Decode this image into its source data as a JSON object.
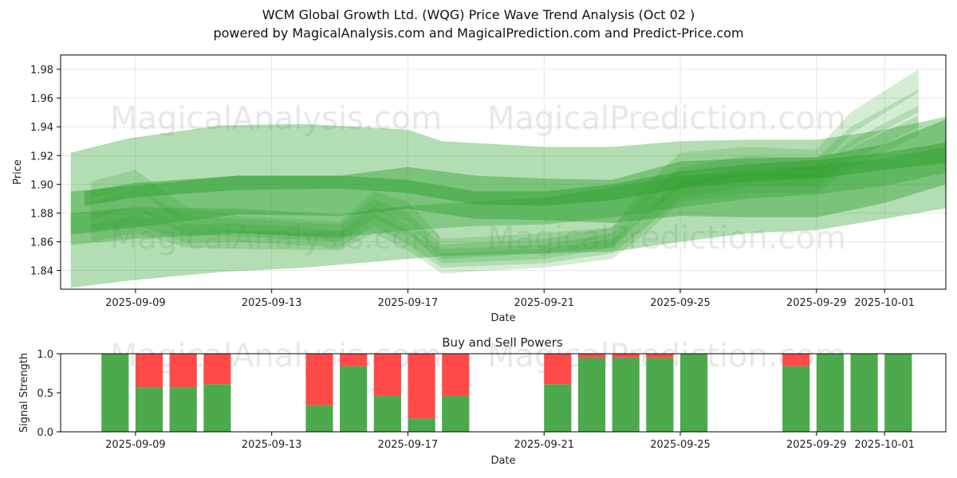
{
  "title_line1": "WCM Global Growth Ltd. (WQG) Price Wave Trend Analysis (Oct 02 )",
  "title_line2": "powered by MagicalAnalysis.com and MagicalPrediction.com and Predict-Price.com",
  "watermarks": [
    "MagicalAnalysis.com",
    "MagicalPrediction.com"
  ],
  "colors": {
    "band": "#2ca02c",
    "buy": "#4caa4c",
    "sell": "#ff4a4a"
  },
  "chart_data": [
    {
      "type": "area",
      "name": "price-wave-chart",
      "xlabel": "Date",
      "ylabel": "Price",
      "ylim": [
        1.827,
        1.99
      ],
      "x_range_days": [
        -2.2,
        23.8
      ],
      "x_origin_date": "2025-09-09",
      "xticks": [
        {
          "day": 0,
          "label": "2025-09-09"
        },
        {
          "day": 4,
          "label": "2025-09-13"
        },
        {
          "day": 8,
          "label": "2025-09-17"
        },
        {
          "day": 12,
          "label": "2025-09-21"
        },
        {
          "day": 16,
          "label": "2025-09-25"
        },
        {
          "day": 20,
          "label": "2025-09-29"
        },
        {
          "day": 22,
          "label": "2025-10-01"
        }
      ],
      "yticks": [
        1.84,
        1.86,
        1.88,
        1.9,
        1.92,
        1.94,
        1.96,
        1.98
      ],
      "grid": true,
      "series": [
        {
          "name": "wide-band",
          "x": [
            -1.9,
            -0.2,
            2.5,
            5,
            8,
            9,
            12,
            14,
            16,
            18,
            20,
            22,
            24.2
          ],
          "upper": [
            1.922,
            1.932,
            1.941,
            1.942,
            1.938,
            1.93,
            1.926,
            1.926,
            1.93,
            1.931,
            1.931,
            1.938,
            1.949
          ],
          "lower": [
            1.828,
            1.833,
            1.839,
            1.842,
            1.848,
            1.85,
            1.852,
            1.853,
            1.86,
            1.866,
            1.868,
            1.876,
            1.885
          ]
        },
        {
          "name": "mid-band-1",
          "x": [
            -1.9,
            0,
            3,
            6,
            8,
            10,
            12,
            14,
            16,
            18,
            20,
            22,
            24.2
          ],
          "upper": [
            1.895,
            1.899,
            1.906,
            1.906,
            1.912,
            1.906,
            1.904,
            1.903,
            1.916,
            1.918,
            1.919,
            1.928,
            1.949
          ],
          "lower": [
            1.865,
            1.87,
            1.879,
            1.878,
            1.883,
            1.876,
            1.875,
            1.873,
            1.878,
            1.877,
            1.877,
            1.887,
            1.903
          ]
        },
        {
          "name": "mid-band-2",
          "x": [
            -1.9,
            0,
            3,
            6,
            8,
            10,
            12,
            14,
            16,
            18,
            20,
            22,
            24.2
          ],
          "upper": [
            1.88,
            1.884,
            1.883,
            1.879,
            1.885,
            1.888,
            1.891,
            1.898,
            1.906,
            1.909,
            1.913,
            1.918,
            1.928
          ],
          "lower": [
            1.858,
            1.862,
            1.866,
            1.863,
            1.868,
            1.871,
            1.872,
            1.877,
            1.884,
            1.89,
            1.893,
            1.899,
            1.91
          ]
        },
        {
          "name": "narrow-band",
          "x": [
            -1.5,
            0,
            3,
            6,
            8,
            10,
            12,
            14,
            16,
            18,
            20,
            22,
            23.8
          ],
          "upper": [
            1.895,
            1.901,
            1.906,
            1.906,
            1.903,
            1.895,
            1.895,
            1.9,
            1.909,
            1.914,
            1.917,
            1.922,
            1.929
          ],
          "lower": [
            1.885,
            1.891,
            1.896,
            1.897,
            1.894,
            1.886,
            1.885,
            1.889,
            1.897,
            1.902,
            1.904,
            1.91,
            1.915
          ]
        },
        {
          "name": "wave-a",
          "x": [
            -1.3,
            0,
            1.5,
            3,
            6,
            7,
            8,
            9,
            12,
            14,
            15,
            16,
            18,
            20,
            21,
            23
          ],
          "upper": [
            1.902,
            1.91,
            1.884,
            1.878,
            1.874,
            1.895,
            1.888,
            1.862,
            1.866,
            1.87,
            1.9,
            1.922,
            1.926,
            1.924,
            1.95,
            1.98
          ],
          "lower": [
            1.89,
            1.898,
            1.87,
            1.866,
            1.862,
            1.882,
            1.874,
            1.848,
            1.852,
            1.856,
            1.886,
            1.907,
            1.912,
            1.91,
            1.935,
            1.964
          ]
        },
        {
          "name": "wave-b",
          "x": [
            -1.3,
            0,
            1.5,
            3,
            6,
            7,
            8,
            9,
            12,
            14,
            15,
            16,
            18,
            20,
            21,
            23
          ],
          "upper": [
            1.888,
            1.897,
            1.878,
            1.876,
            1.872,
            1.89,
            1.88,
            1.858,
            1.862,
            1.87,
            1.892,
            1.912,
            1.92,
            1.918,
            1.94,
            1.966
          ],
          "lower": [
            1.876,
            1.884,
            1.864,
            1.864,
            1.86,
            1.876,
            1.866,
            1.845,
            1.848,
            1.856,
            1.878,
            1.898,
            1.906,
            1.904,
            1.926,
            1.95
          ]
        },
        {
          "name": "wave-c",
          "x": [
            -1.3,
            0,
            1.5,
            3,
            6,
            7,
            8,
            9,
            12,
            14,
            15,
            16,
            18,
            20,
            21,
            23
          ],
          "upper": [
            1.88,
            1.884,
            1.872,
            1.873,
            1.868,
            1.885,
            1.872,
            1.855,
            1.858,
            1.866,
            1.884,
            1.905,
            1.912,
            1.912,
            1.93,
            1.955
          ],
          "lower": [
            1.868,
            1.872,
            1.859,
            1.86,
            1.856,
            1.871,
            1.858,
            1.842,
            1.845,
            1.852,
            1.87,
            1.891,
            1.898,
            1.898,
            1.916,
            1.94
          ]
        },
        {
          "name": "wave-d",
          "x": [
            -1.3,
            0,
            1.5,
            3,
            6,
            7,
            8,
            9,
            12,
            14,
            15,
            16,
            18,
            20,
            21,
            23
          ],
          "upper": [
            1.872,
            1.878,
            1.87,
            1.868,
            1.866,
            1.88,
            1.868,
            1.852,
            1.855,
            1.862,
            1.88,
            1.902,
            1.908,
            1.908,
            1.925,
            1.948
          ],
          "lower": [
            1.86,
            1.866,
            1.856,
            1.855,
            1.854,
            1.866,
            1.854,
            1.838,
            1.842,
            1.848,
            1.866,
            1.888,
            1.894,
            1.894,
            1.911,
            1.934
          ]
        }
      ]
    },
    {
      "type": "bar",
      "name": "buy-sell-powers",
      "title": "Buy and Sell Powers",
      "xlabel": "Date",
      "ylabel": "Signal Strength",
      "ylim": [
        0,
        1
      ],
      "yticks": [
        0.0,
        0.5,
        1.0
      ],
      "x_range_days": [
        -2.2,
        23.8
      ],
      "xticks": [
        {
          "day": 0,
          "label": "2025-09-09"
        },
        {
          "day": 4,
          "label": "2025-09-13"
        },
        {
          "day": 8,
          "label": "2025-09-17"
        },
        {
          "day": 12,
          "label": "2025-09-21"
        },
        {
          "day": 16,
          "label": "2025-09-25"
        },
        {
          "day": 20,
          "label": "2025-09-29"
        },
        {
          "day": 22,
          "label": "2025-10-01"
        }
      ],
      "days": [
        -0.6,
        0.4,
        1.4,
        2.4,
        5.4,
        6.4,
        7.4,
        8.4,
        9.4,
        12.4,
        13.4,
        14.4,
        15.4,
        16.4,
        19.4,
        20.4,
        21.4,
        22.4
      ],
      "buy": [
        1.0,
        0.57,
        0.57,
        0.61,
        0.34,
        0.84,
        0.46,
        0.17,
        0.46,
        0.61,
        0.95,
        0.95,
        0.95,
        1.0,
        0.84,
        1.0,
        1.0,
        1.0
      ],
      "sell": [
        0.0,
        0.43,
        0.43,
        0.39,
        0.66,
        0.16,
        0.54,
        0.83,
        0.54,
        0.39,
        0.05,
        0.05,
        0.05,
        0.0,
        0.16,
        0.0,
        0.0,
        0.0
      ]
    }
  ]
}
